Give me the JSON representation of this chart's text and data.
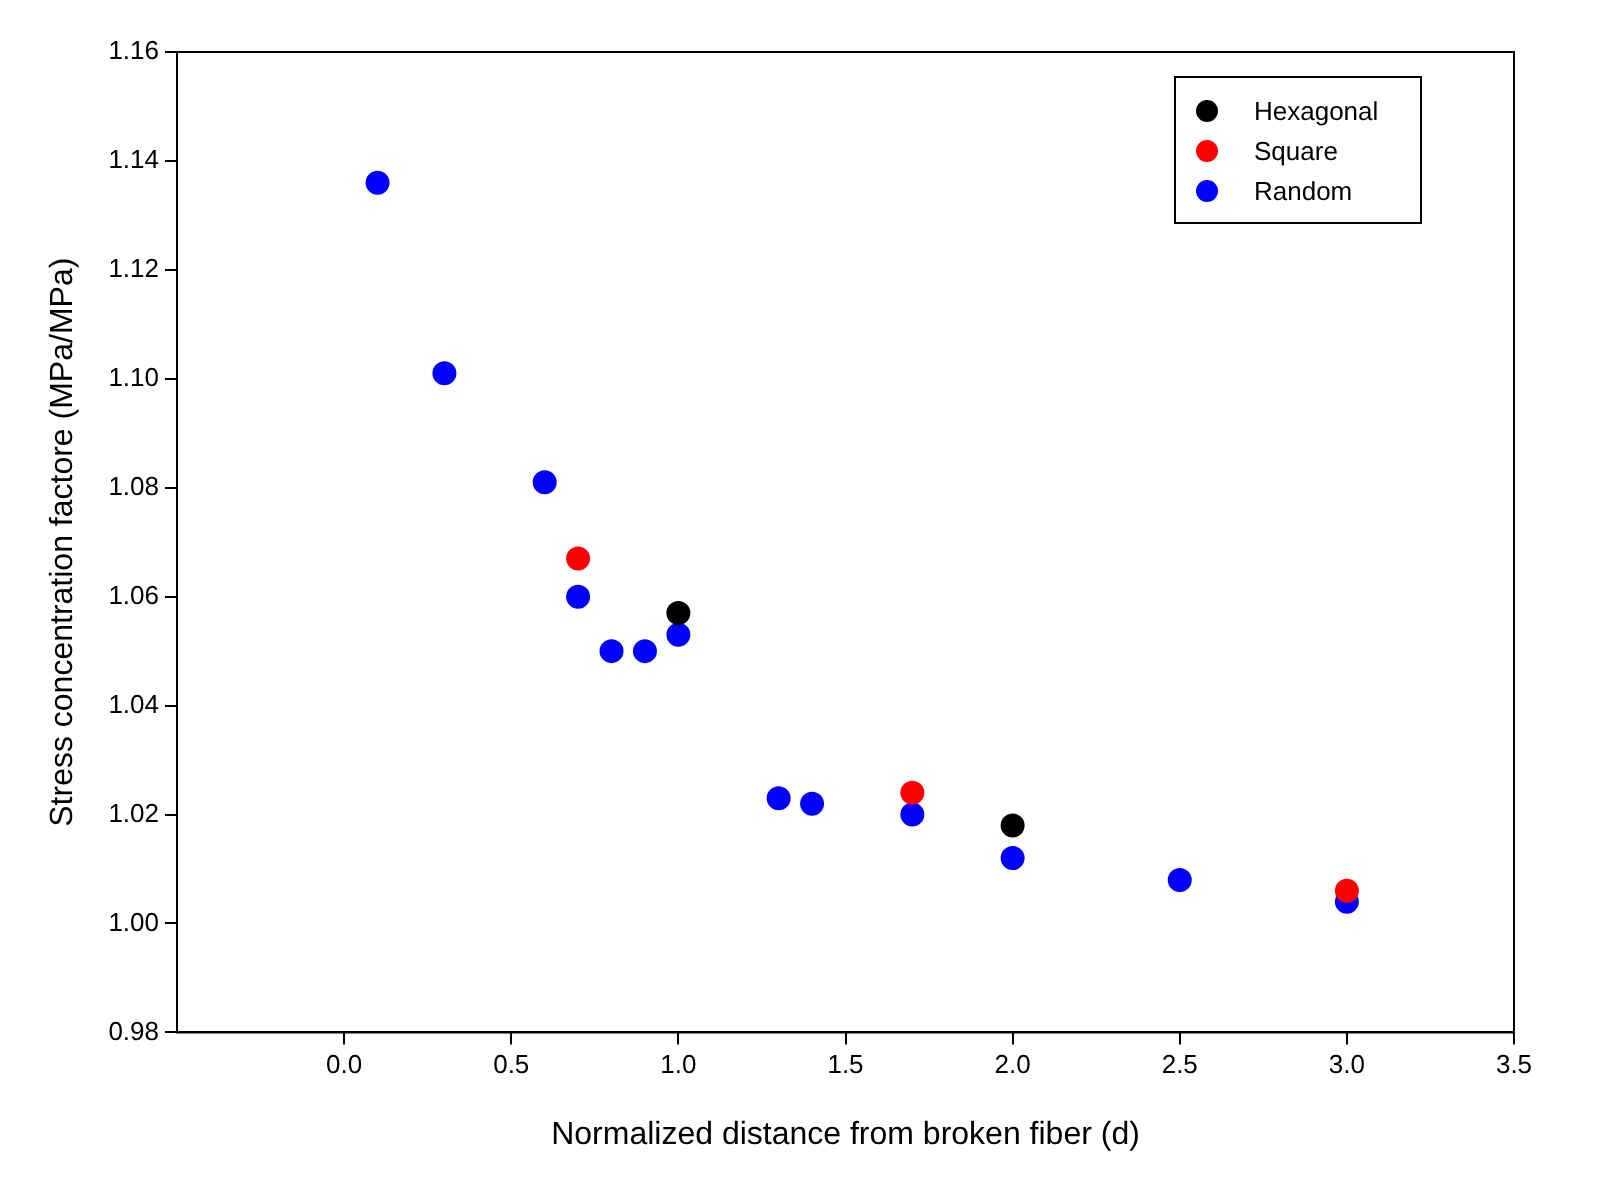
{
  "chart_data": {
    "type": "scatter",
    "xlabel": "Normalized distance from broken fiber (d)",
    "ylabel": "Stress concentration factore (MPa/MPa)",
    "xlim": [
      -0.5,
      3.5
    ],
    "xticks": [
      {
        "value": 0,
        "label": "0.0"
      },
      {
        "value": 0.5,
        "label": "0.5"
      },
      {
        "value": 1,
        "label": "1.0"
      },
      {
        "value": 1.5,
        "label": "1.5"
      },
      {
        "value": 2,
        "label": "2.0"
      },
      {
        "value": 2.5,
        "label": "2.5"
      },
      {
        "value": 3,
        "label": "3.0"
      },
      {
        "value": 3.5,
        "label": "3.5"
      }
    ],
    "ylim": [
      0.98,
      1.16
    ],
    "yticks": [
      {
        "value": 0.98,
        "label": "0.98"
      },
      {
        "value": 1,
        "label": "1.00"
      },
      {
        "value": 1.02,
        "label": "1.02"
      },
      {
        "value": 1.04,
        "label": "1.04"
      },
      {
        "value": 1.06,
        "label": "1.06"
      },
      {
        "value": 1.08,
        "label": "1.08"
      },
      {
        "value": 1.1,
        "label": "1.10"
      },
      {
        "value": 1.12,
        "label": "1.12"
      },
      {
        "value": 1.14,
        "label": "1.14"
      },
      {
        "value": 1.16,
        "label": "1.16"
      }
    ],
    "grid": false,
    "legend": "top right",
    "marker": "circle",
    "series": [
      {
        "name": "Hexagonal",
        "color": "#000000",
        "x": [
          1.0,
          2.0
        ],
        "values": [
          1.057,
          1.018
        ]
      },
      {
        "name": "Square",
        "color": "#ff0000",
        "x": [
          0.7,
          1.7,
          3.0
        ],
        "values": [
          1.067,
          1.024,
          1.006
        ]
      },
      {
        "name": "Random",
        "color": "#0000ff",
        "x": [
          0.1,
          0.3,
          0.6,
          0.7,
          0.8,
          0.9,
          1.0,
          1.3,
          1.4,
          1.7,
          2.0,
          2.5,
          3.0
        ],
        "values": [
          1.136,
          1.101,
          1.081,
          1.06,
          1.05,
          1.05,
          1.053,
          1.023,
          1.022,
          1.02,
          1.012,
          1.008,
          1.004
        ]
      }
    ]
  }
}
